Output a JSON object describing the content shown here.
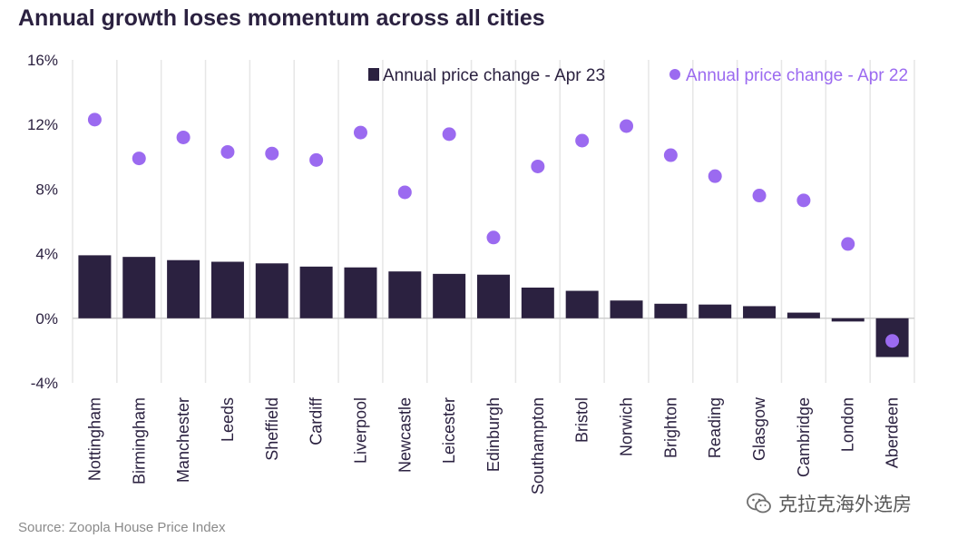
{
  "title": "Annual growth loses momentum across all cities",
  "source": "Source: Zoopla House Price Index",
  "watermark": {
    "text": "克拉克海外选房",
    "icon": "wechat-icon"
  },
  "colors": {
    "bar": "#2b2140",
    "dot": "#9b6af0",
    "grid": "#e6e6e6",
    "axis": "#cfcfcf"
  },
  "chart_data": {
    "type": "bar",
    "categories": [
      "Nottingham",
      "Birmingham",
      "Manchester",
      "Leeds",
      "Sheffield",
      "Cardiff",
      "Liverpool",
      "Newcastle",
      "Leicester",
      "Edinburgh",
      "Southampton",
      "Bristol",
      "Norwich",
      "Brighton",
      "Reading",
      "Glasgow",
      "Cambridge",
      "London",
      "Aberdeen"
    ],
    "series": [
      {
        "name": "Annual price change - Apr 23",
        "mark": "bar",
        "values": [
          3.9,
          3.8,
          3.6,
          3.5,
          3.4,
          3.2,
          3.15,
          2.9,
          2.75,
          2.7,
          1.9,
          1.7,
          1.1,
          0.9,
          0.85,
          0.75,
          0.35,
          -0.2,
          -2.4
        ]
      },
      {
        "name": "Annual price change - Apr 22",
        "mark": "dot",
        "values": [
          12.3,
          9.9,
          11.2,
          10.3,
          10.2,
          9.8,
          11.5,
          7.8,
          11.4,
          5.0,
          9.4,
          11.0,
          11.9,
          10.1,
          8.8,
          7.6,
          7.3,
          4.6,
          -1.4
        ]
      }
    ],
    "y_ticks": [
      "16%",
      "12%",
      "8%",
      "4%",
      "0%",
      "-4%"
    ],
    "ylim": [
      -4,
      16
    ],
    "legend": "top-right",
    "grid": "vertical"
  }
}
